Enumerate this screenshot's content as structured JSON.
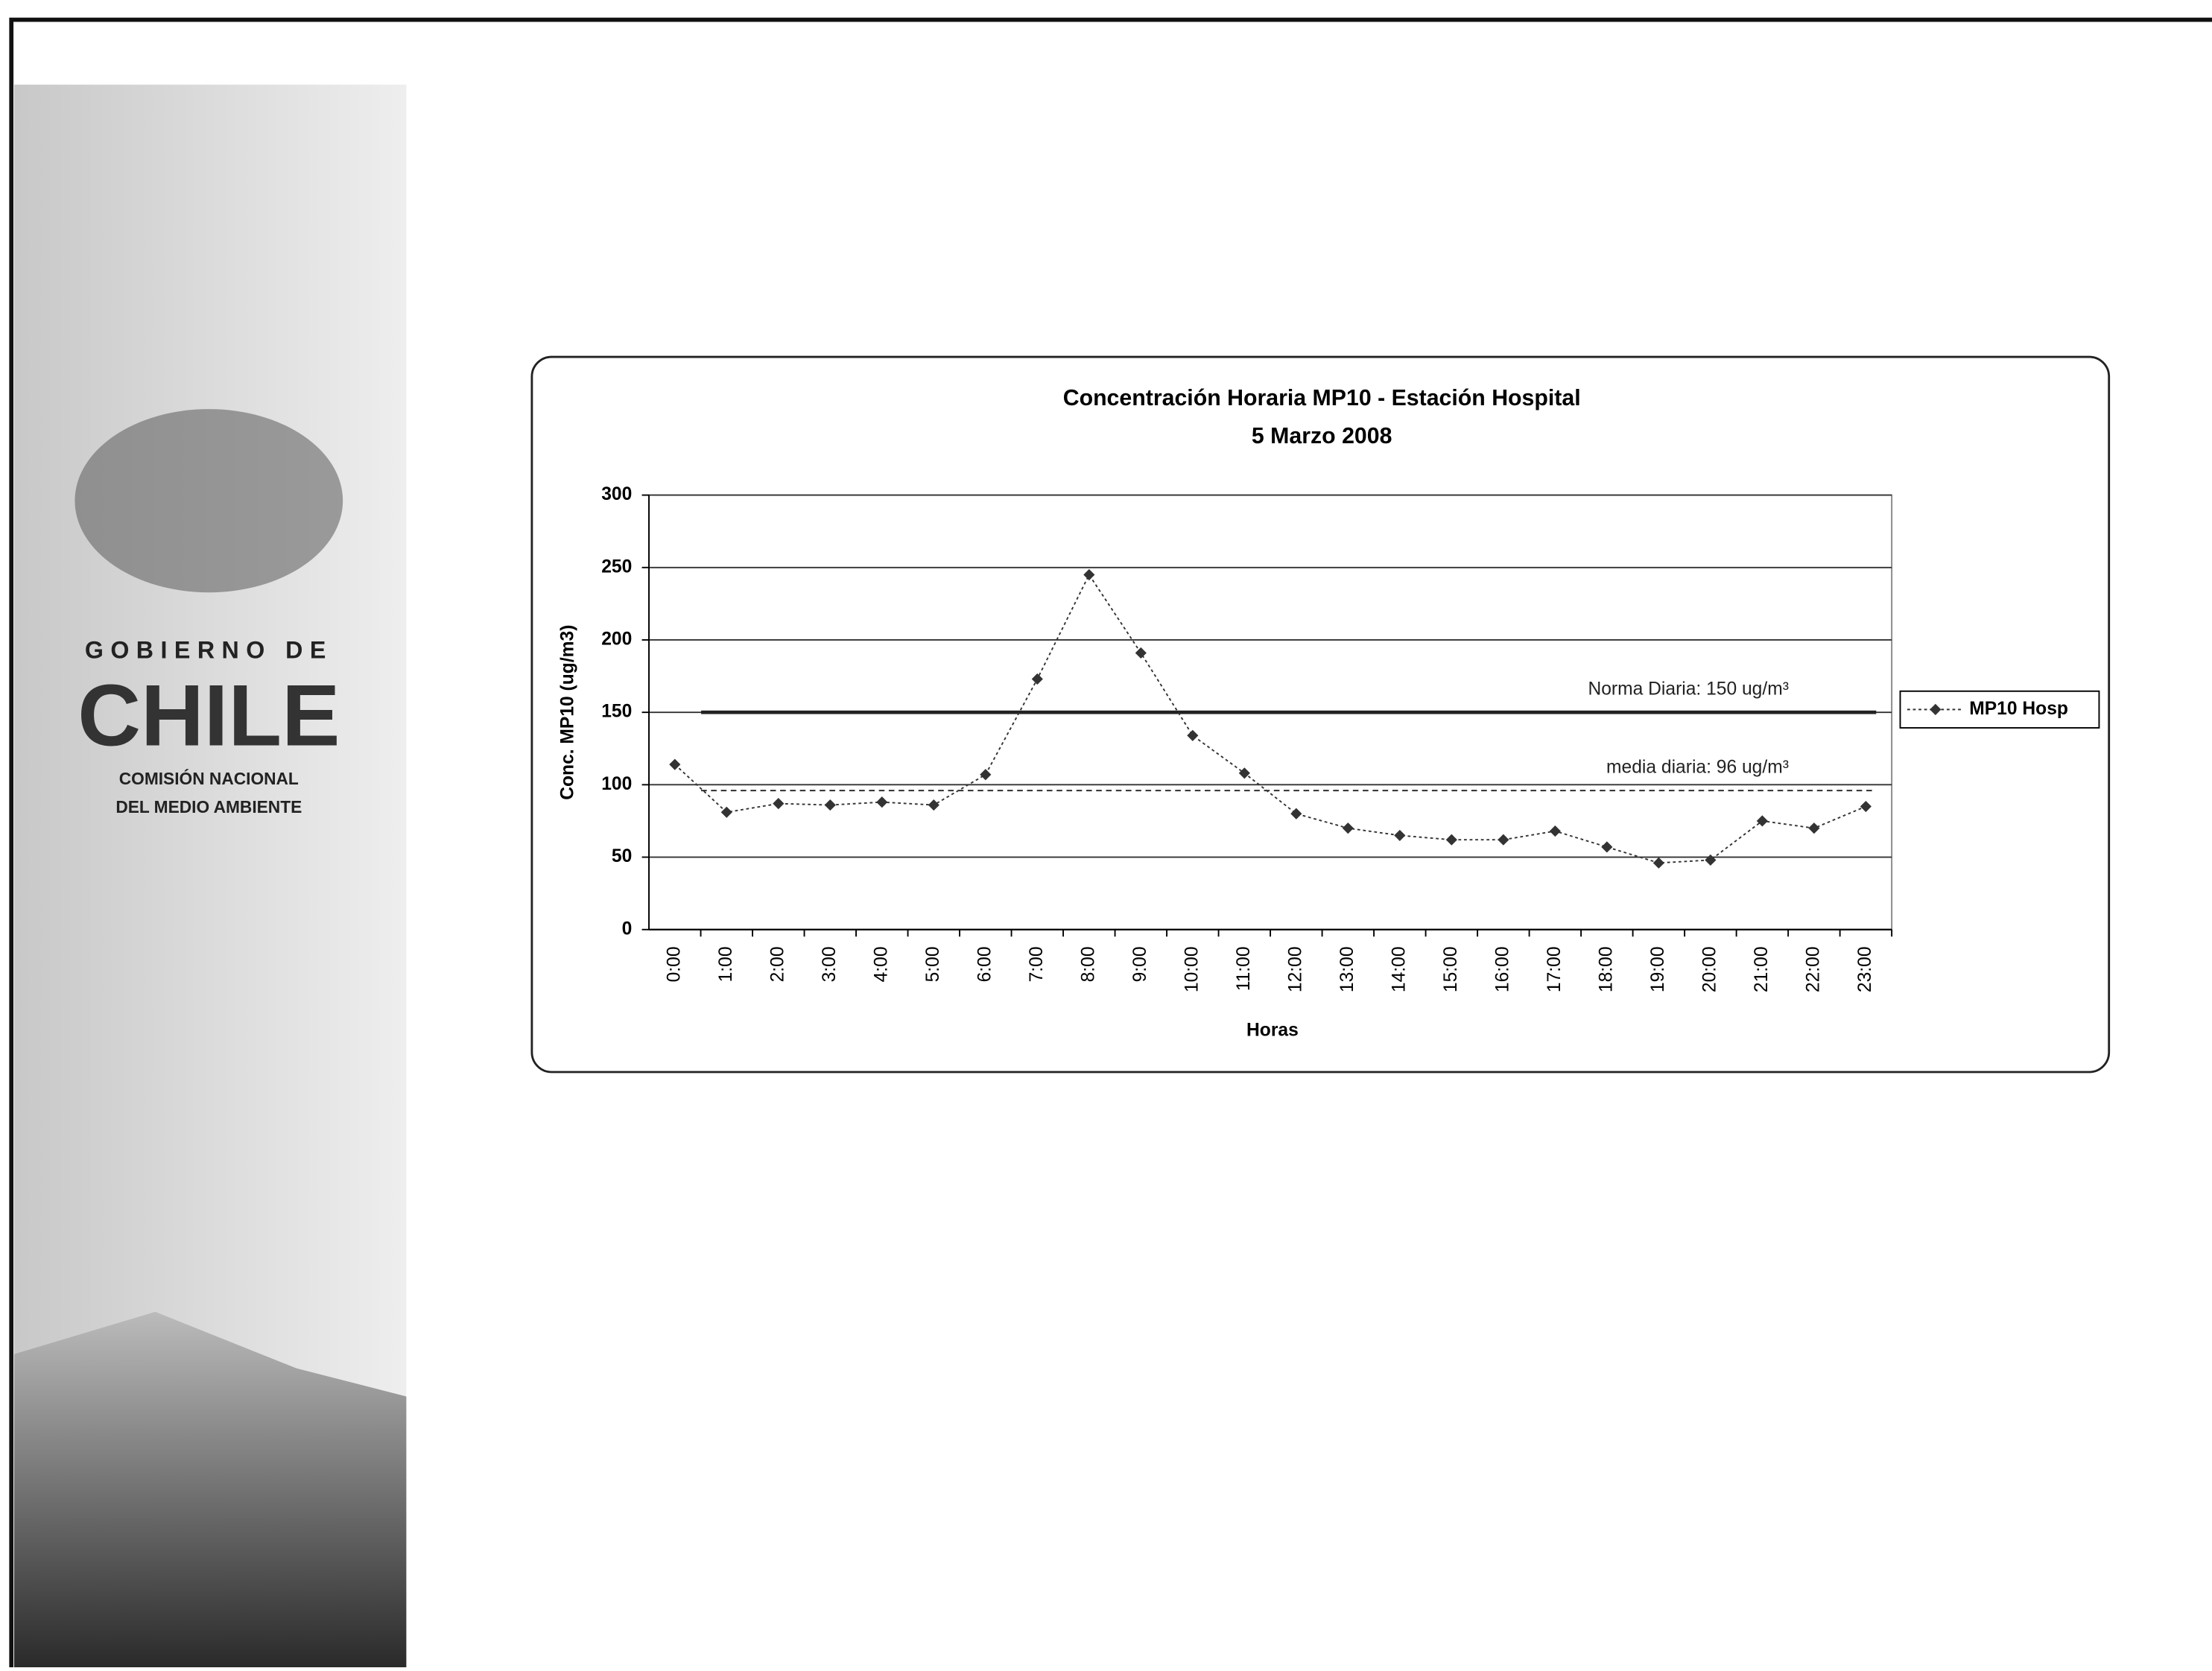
{
  "chart_data": {
    "type": "line",
    "title": "Concentración Horaria MP10 - Estación Hospital",
    "subtitle": "5 Marzo 2008",
    "x_label": "Horas",
    "y_label": "Conc. MP10 (ug/m3)",
    "categories": [
      "0:00",
      "1:00",
      "2:00",
      "3:00",
      "4:00",
      "5:00",
      "6:00",
      "7:00",
      "8:00",
      "9:00",
      "10:00",
      "11:00",
      "12:00",
      "13:00",
      "14:00",
      "15:00",
      "16:00",
      "17:00",
      "18:00",
      "19:00",
      "20:00",
      "21:00",
      "22:00",
      "23:00"
    ],
    "series": [
      {
        "name": "MP10 Hosp",
        "color": "#333333",
        "values": [
          114,
          81,
          87,
          86,
          88,
          86,
          107,
          173,
          245,
          191,
          134,
          108,
          80,
          70,
          65,
          62,
          62,
          68,
          57,
          46,
          48,
          75,
          70,
          85
        ]
      }
    ],
    "reference_lines": [
      {
        "value": 150,
        "label": "Norma Diaria: 150 ug/m³",
        "style": "solid"
      },
      {
        "value": 96,
        "label": "media diaria: 96 ug/m³",
        "style": "dashed"
      }
    ],
    "ylim": [
      0,
      300
    ],
    "yticks": [
      0,
      50,
      100,
      150,
      200,
      250,
      300
    ],
    "grid": true,
    "legend": "right"
  },
  "logo": {
    "line1": "GOBIERNO DE",
    "line2": "CHILE",
    "line3": "COMISIÓN NACIONAL",
    "line4": "DEL MEDIO AMBIENTE"
  }
}
